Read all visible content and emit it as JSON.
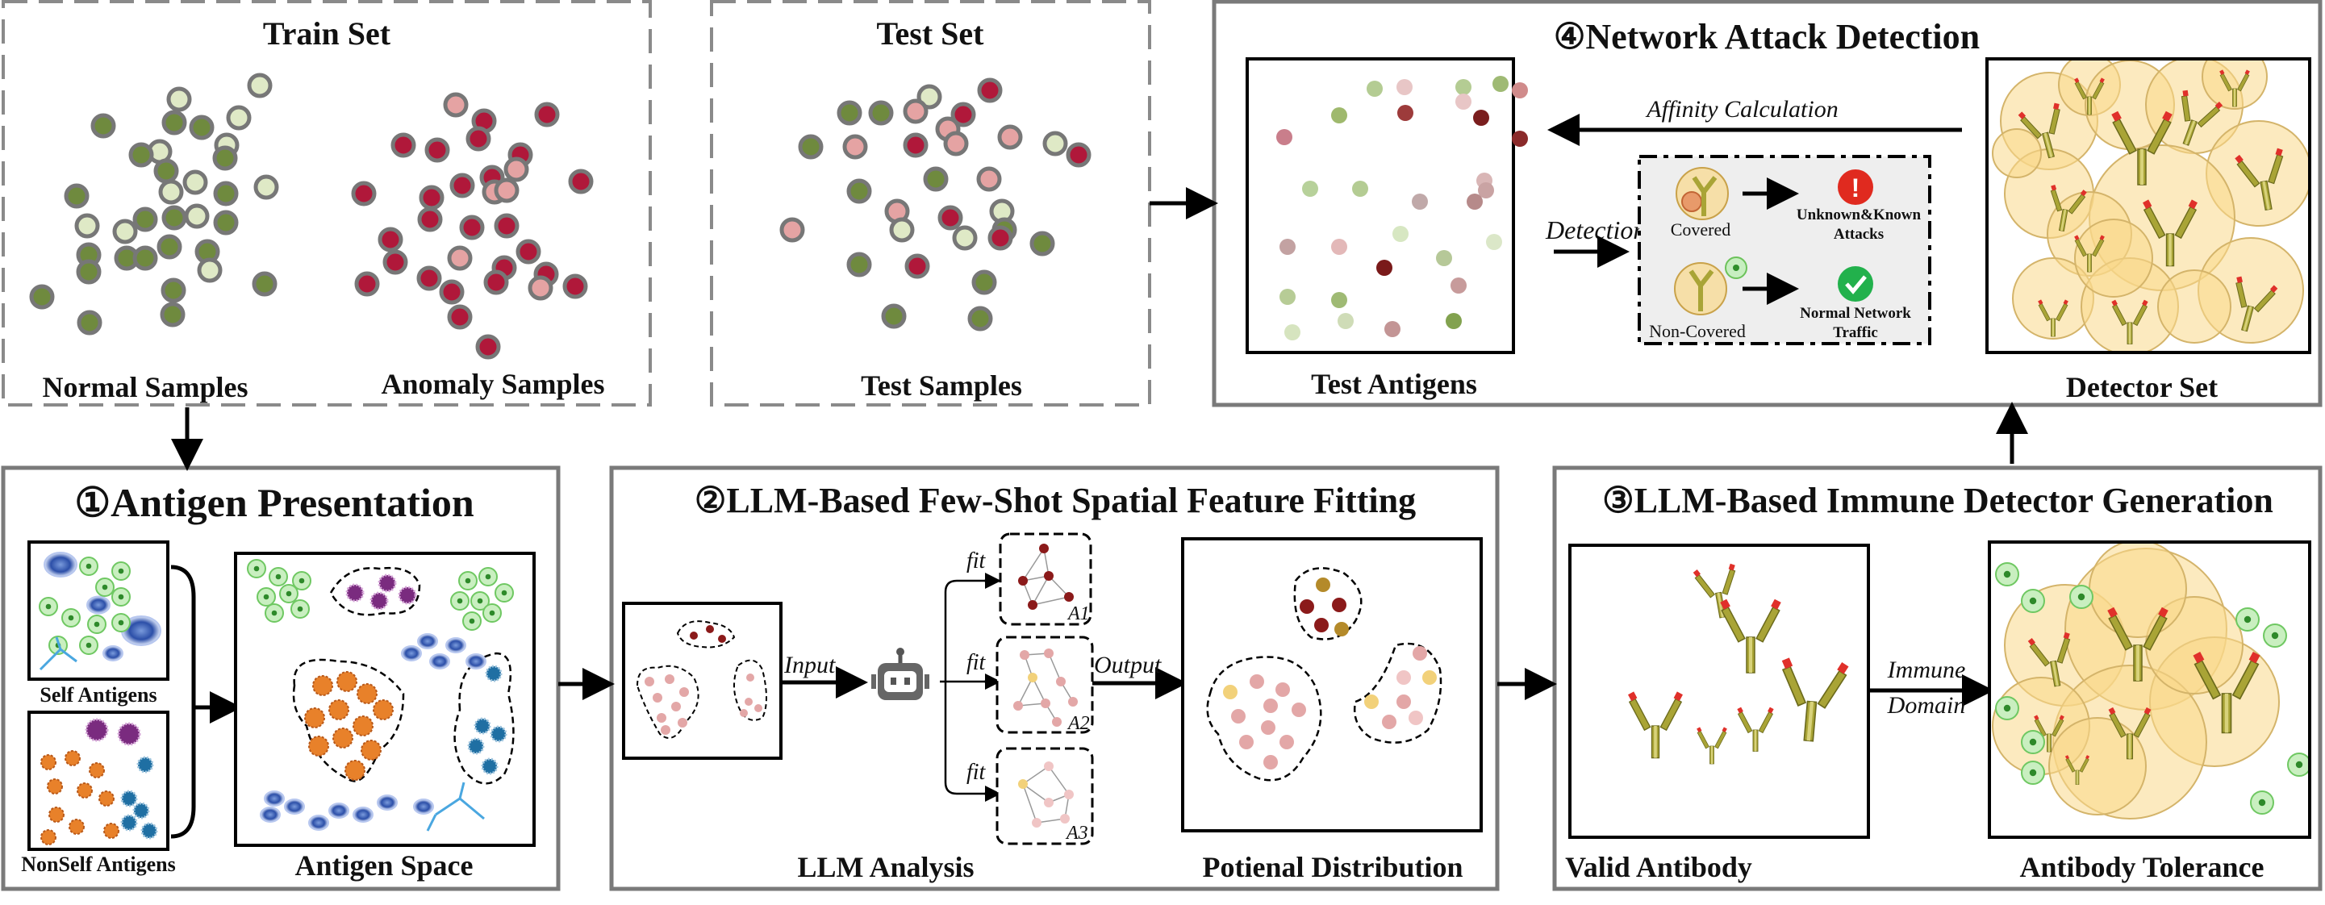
{
  "train": {
    "title": "Train Set",
    "normal_label": "Normal Samples",
    "anomaly_label": "Anomaly Samples"
  },
  "test": {
    "title": "Test Set",
    "samples_label": "Test Samples"
  },
  "detection": {
    "title": "④Network Attack Detection",
    "test_antigens_label": "Test Antigens",
    "detector_set_label": "Detector Set",
    "affinity_label": "Affinity Calculation",
    "detection_label": "Detection",
    "covered_label": "Covered",
    "non_covered_label": "Non-Covered",
    "attack_line1": "Unknown&Known",
    "attack_line2": "Attacks",
    "normal_line1": "Normal Network",
    "normal_line2": "Traffic"
  },
  "antigen": {
    "title": "①Antigen Presentation",
    "self_label": "Self Antigens",
    "nonself_label": "NonSelf Antigens",
    "space_label": "Antigen Space"
  },
  "llm_fitting": {
    "title": "②LLM-Based Few-Shot Spatial Feature Fitting",
    "input_label": "Input",
    "output_label": "Output",
    "fit_label": "fit",
    "a1": "A1",
    "a2": "A2",
    "a3": "A3",
    "analysis_label": "LLM Analysis",
    "distribution_label": "Potienal Distribution"
  },
  "generation": {
    "title": "③LLM-Based Immune Detector Generation",
    "valid_label": "Valid Antibody",
    "immune_line1": "Immune",
    "immune_line2": "Domain",
    "tolerance_label": "Antibody Tolerance"
  },
  "colors": {
    "normal_green": "#6f8a3e",
    "anomaly_red": "#b0183a",
    "light_pink": "#e5a3a3",
    "pale_green": "#d9e8bd",
    "detector_fill": "#f9d98a",
    "panel_border": "#7a7a7a"
  }
}
